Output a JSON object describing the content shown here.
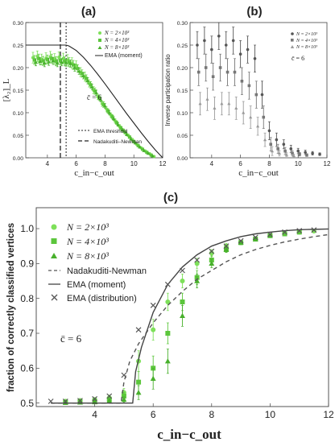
{
  "chart_data": [
    {
      "type": "line",
      "panel_label": "(a)",
      "xlabel": "c_in−c_out",
      "ylabel": "[λ₂]_L",
      "xlim": [
        2.5,
        12
      ],
      "ylim": [
        0,
        0.3
      ],
      "xticks": [
        "4",
        "6",
        "8",
        "10",
        "12"
      ],
      "yticks": [
        "0.00",
        "0.05",
        "0.10",
        "0.15",
        "0.20",
        "0.25",
        "0.30"
      ],
      "annotation": "c̄ = 6",
      "legend_top": [
        "N = 2×10³",
        "N = 4×10³",
        "N = 8×10³",
        "EMA (moment)"
      ],
      "legend_bottom": [
        "EMA threshold",
        "Nadakuditi–Newman"
      ],
      "vlines": {
        "ema_threshold": 5.3,
        "nadakuditi_newman": 4.9
      },
      "series": [
        {
          "name": "N = 2×10³",
          "marker": "circle",
          "color": "#7ee05a",
          "x": [
            3.0,
            3.3,
            3.6,
            3.9,
            4.2,
            4.5,
            4.8,
            5.1,
            5.4,
            5.7,
            6.0,
            6.3,
            6.6,
            6.9,
            7.2,
            7.5,
            7.8,
            8.1,
            8.4,
            8.7,
            9.0,
            9.3,
            9.6,
            9.9,
            10.2,
            10.5,
            10.8,
            11.1,
            11.4
          ],
          "y": [
            0.222,
            0.225,
            0.218,
            0.221,
            0.224,
            0.219,
            0.223,
            0.22,
            0.217,
            0.21,
            0.205,
            0.19,
            0.18,
            0.165,
            0.15,
            0.135,
            0.12,
            0.108,
            0.095,
            0.082,
            0.07,
            0.06,
            0.05,
            0.04,
            0.03,
            0.022,
            0.015,
            0.009,
            0.003
          ],
          "err": [
            0.012,
            0.012,
            0.012,
            0.012,
            0.012,
            0.012,
            0.012,
            0.012,
            0.012,
            0.012,
            0.01,
            0.01,
            0.01,
            0.008,
            0.008,
            0.006,
            0.006,
            0.006,
            0.005,
            0.005,
            0.004,
            0.004,
            0.003,
            0.003,
            0.002,
            0.002,
            0.002,
            0.001,
            0.001
          ]
        },
        {
          "name": "N = 4×10³",
          "marker": "square",
          "color": "#5cc63c",
          "x": [
            3.1,
            3.4,
            3.7,
            4.0,
            4.3,
            4.6,
            4.9,
            5.2,
            5.5,
            5.8,
            6.1,
            6.4,
            6.7,
            7.0,
            7.3,
            7.6,
            7.9,
            8.2,
            8.5,
            8.8,
            9.1,
            9.4,
            9.7,
            10.0,
            10.3,
            10.6,
            10.9,
            11.2
          ],
          "y": [
            0.217,
            0.22,
            0.215,
            0.218,
            0.22,
            0.214,
            0.216,
            0.214,
            0.212,
            0.206,
            0.198,
            0.187,
            0.176,
            0.162,
            0.148,
            0.133,
            0.118,
            0.104,
            0.091,
            0.078,
            0.066,
            0.056,
            0.046,
            0.036,
            0.027,
            0.019,
            0.012,
            0.006
          ],
          "err": [
            0.01,
            0.01,
            0.01,
            0.01,
            0.01,
            0.01,
            0.01,
            0.01,
            0.01,
            0.01,
            0.008,
            0.008,
            0.008,
            0.007,
            0.007,
            0.006,
            0.006,
            0.005,
            0.005,
            0.004,
            0.004,
            0.003,
            0.003,
            0.003,
            0.002,
            0.002,
            0.001,
            0.001
          ]
        },
        {
          "name": "N = 8×10³",
          "marker": "triangle",
          "color": "#48b02c",
          "x": [
            3.2,
            3.5,
            3.8,
            4.1,
            4.4,
            4.7,
            5.0,
            5.3,
            5.6,
            5.9,
            6.2,
            6.5,
            6.8,
            7.1,
            7.4,
            7.7,
            8.0,
            8.3,
            8.6,
            8.9,
            9.2,
            9.5,
            9.8,
            10.1,
            10.4,
            10.7,
            11.0,
            11.3
          ],
          "y": [
            0.212,
            0.214,
            0.21,
            0.213,
            0.215,
            0.21,
            0.212,
            0.211,
            0.209,
            0.2,
            0.192,
            0.182,
            0.171,
            0.157,
            0.144,
            0.129,
            0.115,
            0.1,
            0.087,
            0.074,
            0.062,
            0.052,
            0.042,
            0.033,
            0.024,
            0.016,
            0.01,
            0.004
          ],
          "err": [
            0.008,
            0.008,
            0.008,
            0.008,
            0.008,
            0.008,
            0.008,
            0.008,
            0.008,
            0.008,
            0.007,
            0.007,
            0.007,
            0.006,
            0.006,
            0.005,
            0.005,
            0.005,
            0.004,
            0.004,
            0.003,
            0.003,
            0.003,
            0.002,
            0.002,
            0.002,
            0.001,
            0.001
          ]
        },
        {
          "name": "EMA (moment)",
          "style": "solid",
          "color": "#222222",
          "x": [
            2.5,
            3,
            4,
            5,
            5.3,
            5.5,
            6,
            6.5,
            7,
            7.5,
            8,
            8.5,
            9,
            9.5,
            10,
            10.5,
            11,
            11.5,
            12
          ],
          "y": [
            0.25,
            0.25,
            0.25,
            0.25,
            0.25,
            0.248,
            0.238,
            0.223,
            0.205,
            0.185,
            0.164,
            0.142,
            0.12,
            0.098,
            0.077,
            0.056,
            0.036,
            0.017,
            0.0
          ]
        }
      ]
    },
    {
      "type": "scatter",
      "panel_label": "(b)",
      "xlabel": "c_in−c_out",
      "ylabel": "Inverse participation ratio",
      "xlim": [
        2.5,
        12
      ],
      "ylim": [
        0,
        0.3
      ],
      "xticks": [
        "4",
        "6",
        "8",
        "10",
        "12"
      ],
      "yticks": [
        "0.00",
        "0.05",
        "0.10",
        "0.15",
        "0.20",
        "0.25",
        "0.30"
      ],
      "annotation": "c̄ = 6",
      "legend": [
        "N = 2×10³",
        "N = 4×10³",
        "N = 8×10³"
      ],
      "series": [
        {
          "name": "N = 2×10³",
          "marker": "circle",
          "color": "#555555",
          "x": [
            3.0,
            3.5,
            4.0,
            4.5,
            5.0,
            5.5,
            6.0,
            6.5,
            7.0,
            7.5,
            8.0,
            8.5,
            9.0,
            9.5,
            10.0,
            10.5,
            11.0,
            11.5
          ],
          "y": [
            0.25,
            0.26,
            0.24,
            0.27,
            0.25,
            0.26,
            0.23,
            0.24,
            0.22,
            0.14,
            0.06,
            0.04,
            0.03,
            0.02,
            0.015,
            0.012,
            0.01,
            0.008
          ],
          "err": [
            0.03,
            0.03,
            0.03,
            0.03,
            0.03,
            0.03,
            0.03,
            0.03,
            0.03,
            0.03,
            0.02,
            0.015,
            0.01,
            0.008,
            0.006,
            0.005,
            0.004,
            0.003
          ]
        },
        {
          "name": "N = 4×10³",
          "marker": "square",
          "color": "#777777",
          "x": [
            3.1,
            3.6,
            4.1,
            4.6,
            5.1,
            5.6,
            6.1,
            6.6,
            7.1,
            7.6,
            8.1,
            8.6,
            9.1,
            9.6,
            10.1,
            10.6
          ],
          "y": [
            0.19,
            0.2,
            0.18,
            0.2,
            0.19,
            0.19,
            0.17,
            0.16,
            0.14,
            0.09,
            0.03,
            0.02,
            0.015,
            0.01,
            0.008,
            0.006
          ],
          "err": [
            0.03,
            0.03,
            0.03,
            0.03,
            0.03,
            0.03,
            0.03,
            0.03,
            0.03,
            0.025,
            0.015,
            0.01,
            0.008,
            0.006,
            0.004,
            0.003
          ]
        },
        {
          "name": "N = 8×10³",
          "marker": "triangle",
          "color": "#999999",
          "x": [
            3.2,
            3.7,
            4.2,
            4.7,
            5.2,
            5.7,
            6.2,
            6.7,
            7.2,
            7.7,
            8.2,
            8.7,
            9.2,
            9.7
          ],
          "y": [
            0.12,
            0.13,
            0.11,
            0.12,
            0.12,
            0.11,
            0.1,
            0.09,
            0.07,
            0.04,
            0.015,
            0.01,
            0.007,
            0.005
          ],
          "err": [
            0.025,
            0.025,
            0.025,
            0.025,
            0.025,
            0.025,
            0.025,
            0.025,
            0.02,
            0.015,
            0.01,
            0.006,
            0.004,
            0.003
          ]
        }
      ]
    },
    {
      "type": "line",
      "panel_label": "(c)",
      "xlabel": "c_in−c_out",
      "ylabel": "fraction of correctly classified vertices",
      "xlim": [
        2,
        12
      ],
      "ylim": [
        0.49,
        1.06
      ],
      "xticks": [
        "4",
        "6",
        "8",
        "10",
        "12"
      ],
      "yticks": [
        "0.5",
        "0.6",
        "0.7",
        "0.8",
        "0.9",
        "1.0"
      ],
      "annotation": "c̄ = 6",
      "legend": [
        "N = 2×10³",
        "N = 4×10³",
        "N = 8×10³",
        "Nadakuditi-Newman",
        "EMA (moment)",
        "EMA (distribution)"
      ],
      "series": [
        {
          "name": "N = 2×10³",
          "marker": "circle",
          "color": "#7ee05a",
          "x": [
            3.0,
            3.5,
            4.0,
            4.5,
            5.0,
            5.5,
            6.0,
            6.5,
            7.0,
            7.5,
            8.0,
            8.5,
            9.0,
            9.5,
            10.0,
            10.5,
            11.0,
            11.5
          ],
          "y": [
            0.505,
            0.507,
            0.51,
            0.515,
            0.53,
            0.62,
            0.71,
            0.79,
            0.85,
            0.9,
            0.93,
            0.95,
            0.96,
            0.97,
            0.98,
            0.985,
            0.99,
            0.993
          ],
          "err": [
            0.006,
            0.006,
            0.006,
            0.008,
            0.012,
            0.03,
            0.03,
            0.025,
            0.02,
            0.015,
            0.01,
            0.008,
            0.006,
            0.005,
            0.004,
            0.003,
            0.003,
            0.002
          ]
        },
        {
          "name": "N = 4×10³",
          "marker": "square",
          "color": "#5cc63c",
          "x": [
            3.0,
            3.5,
            4.0,
            4.5,
            5.0,
            5.5,
            6.0,
            6.5,
            7.0,
            7.5,
            8.0,
            8.5,
            9.0,
            9.5,
            10.0,
            10.5,
            11.0
          ],
          "y": [
            0.502,
            0.504,
            0.506,
            0.51,
            0.52,
            0.56,
            0.6,
            0.7,
            0.79,
            0.86,
            0.91,
            0.94,
            0.96,
            0.97,
            0.98,
            0.985,
            0.99
          ],
          "err": [
            0.005,
            0.005,
            0.005,
            0.007,
            0.01,
            0.03,
            0.035,
            0.03,
            0.025,
            0.02,
            0.012,
            0.008,
            0.006,
            0.004,
            0.003,
            0.003,
            0.002
          ]
        },
        {
          "name": "N = 8×10³",
          "marker": "triangle",
          "color": "#48b02c",
          "x": [
            3.0,
            3.5,
            4.0,
            4.5,
            5.0,
            5.5,
            6.0,
            6.5,
            7.0,
            7.5,
            8.0,
            8.5,
            9.0,
            9.5,
            10.0
          ],
          "y": [
            0.501,
            0.502,
            0.503,
            0.506,
            0.51,
            0.53,
            0.57,
            0.62,
            0.75,
            0.85,
            0.9,
            0.94,
            0.96,
            0.97,
            0.98
          ],
          "err": [
            0.004,
            0.004,
            0.004,
            0.006,
            0.008,
            0.02,
            0.03,
            0.035,
            0.03,
            0.02,
            0.012,
            0.008,
            0.005,
            0.004,
            0.003
          ]
        },
        {
          "name": "Nadakuditi-Newman",
          "style": "dashed",
          "color": "#555555",
          "x": [
            2.5,
            3,
            4,
            4.9,
            5.0,
            5.2,
            5.5,
            6,
            6.5,
            7,
            7.5,
            8,
            8.5,
            9,
            9.5,
            10,
            10.5,
            11,
            11.5,
            12
          ],
          "y": [
            0.5,
            0.5,
            0.5,
            0.5,
            0.56,
            0.62,
            0.67,
            0.73,
            0.78,
            0.82,
            0.855,
            0.88,
            0.905,
            0.925,
            0.94,
            0.952,
            0.962,
            0.97,
            0.977,
            0.983
          ]
        },
        {
          "name": "EMA (moment)",
          "style": "solid",
          "color": "#444444",
          "x": [
            2.5,
            3,
            4,
            5,
            5.3,
            5.4,
            5.6,
            6,
            6.5,
            7,
            7.5,
            8,
            8.5,
            9,
            9.5,
            10,
            10.5,
            11,
            11.5,
            12
          ],
          "y": [
            0.5,
            0.5,
            0.5,
            0.5,
            0.5,
            0.59,
            0.66,
            0.76,
            0.84,
            0.89,
            0.925,
            0.95,
            0.965,
            0.977,
            0.985,
            0.99,
            0.994,
            0.997,
            0.998,
            0.999
          ]
        },
        {
          "name": "EMA (distribution)",
          "marker": "cross",
          "color": "#555555",
          "x": [
            2.5,
            3,
            3.5,
            4,
            4.5,
            5,
            5.5,
            6,
            6.5,
            7,
            7.5,
            8,
            8.5,
            9,
            9.5,
            10,
            10.5,
            11,
            11.5
          ],
          "y": [
            0.505,
            0.505,
            0.507,
            0.512,
            0.52,
            0.58,
            0.71,
            0.78,
            0.84,
            0.88,
            0.91,
            0.935,
            0.95,
            0.965,
            0.975,
            0.984,
            0.99,
            0.994,
            0.996
          ]
        }
      ]
    }
  ]
}
